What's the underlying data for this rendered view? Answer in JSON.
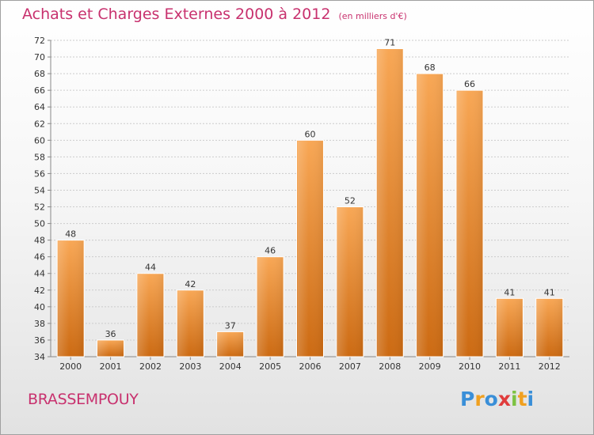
{
  "header": {
    "title": "Achats et Charges Externes 2000 à 2012",
    "unit": "(en milliers d'€)"
  },
  "footer": {
    "commune": "BRASSEMPOUY",
    "logo_letters": [
      {
        "char": "P",
        "color": "#3a8fd8"
      },
      {
        "char": "r",
        "color": "#f0a020"
      },
      {
        "char": "o",
        "color": "#3a8fd8"
      },
      {
        "char": "x",
        "color": "#e03c3c"
      },
      {
        "char": "i",
        "color": "#7cc242"
      },
      {
        "char": "t",
        "color": "#f0a020"
      },
      {
        "char": "i",
        "color": "#3a8fd8"
      }
    ]
  },
  "colors": {
    "title": "#c8316e",
    "bar_light": "#f8a755",
    "bar_dark": "#cc6a12",
    "grid": "#cccccc",
    "axis": "#888888"
  },
  "chart_data": {
    "type": "bar",
    "title": "Achats et Charges Externes 2000 à 2012",
    "subtitle": "(en milliers d'€)",
    "categories": [
      "2000",
      "2001",
      "2002",
      "2003",
      "2004",
      "2005",
      "2006",
      "2007",
      "2008",
      "2009",
      "2010",
      "2011",
      "2012"
    ],
    "values": [
      48,
      36,
      44,
      42,
      37,
      46,
      60,
      52,
      71,
      68,
      66,
      41,
      41
    ],
    "data_labels": [
      "48",
      "36",
      "44",
      "42",
      "37",
      "46",
      "60",
      "52",
      "71",
      "68",
      "66",
      "41",
      "41"
    ],
    "ylim": [
      34,
      72
    ],
    "yticks": [
      34,
      36,
      38,
      40,
      42,
      44,
      46,
      48,
      50,
      52,
      54,
      56,
      58,
      60,
      62,
      64,
      66,
      68,
      70,
      72
    ],
    "grid": true,
    "legend": "none"
  }
}
